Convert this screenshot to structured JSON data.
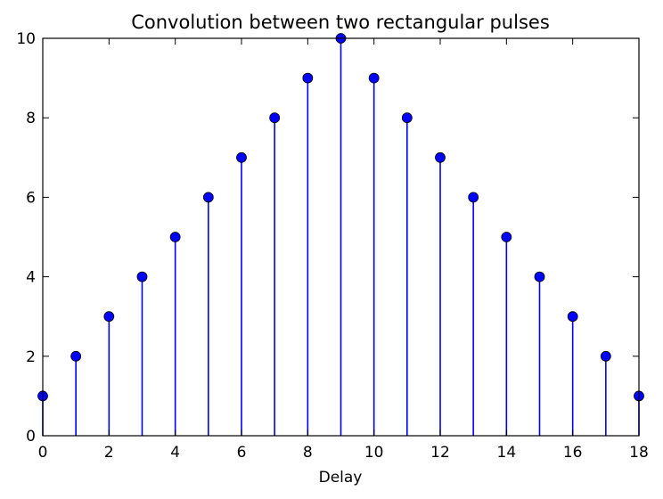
{
  "chart_data": {
    "type": "stem",
    "title": "Convolution between two rectangular pulses",
    "xlabel": "Delay",
    "ylabel": "",
    "x": [
      0,
      1,
      2,
      3,
      4,
      5,
      6,
      7,
      8,
      9,
      10,
      11,
      12,
      13,
      14,
      15,
      16,
      17,
      18
    ],
    "values": [
      1,
      2,
      3,
      4,
      5,
      6,
      7,
      8,
      9,
      10,
      9,
      8,
      7,
      6,
      5,
      4,
      3,
      2,
      1
    ],
    "xlim": [
      0,
      18
    ],
    "ylim": [
      0,
      10
    ],
    "xticks": [
      0,
      2,
      4,
      6,
      8,
      10,
      12,
      14,
      16,
      18
    ],
    "yticks": [
      0,
      2,
      4,
      6,
      8,
      10
    ],
    "xtick_labels": [
      "0",
      "2",
      "4",
      "6",
      "8",
      "10",
      "12",
      "14",
      "16",
      "18"
    ],
    "ytick_labels": [
      "0",
      "2",
      "4",
      "6",
      "8",
      "10"
    ],
    "grid": false,
    "colors": {
      "stem": "#0000ff",
      "marker_fill": "#0000ff",
      "marker_edge": "#000000",
      "axes": "#000000"
    }
  }
}
